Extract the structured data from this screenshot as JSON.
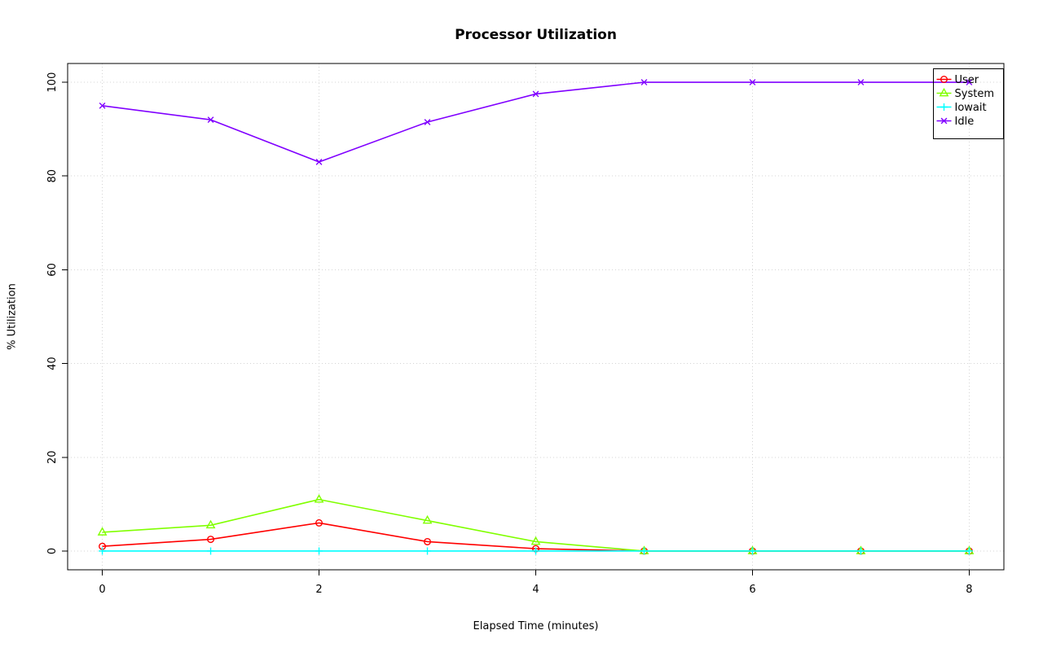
{
  "chart_data": {
    "type": "line",
    "title": "Processor Utilization",
    "xlabel": "Elapsed Time (minutes)",
    "ylabel": "% Utilization",
    "x": [
      0,
      1,
      2,
      3,
      4,
      5,
      6,
      7,
      8
    ],
    "xlim": [
      0,
      8
    ],
    "ylim": [
      0,
      100
    ],
    "xticks": [
      0,
      2,
      4,
      6,
      8
    ],
    "yticks": [
      0,
      20,
      40,
      60,
      80,
      100
    ],
    "grid": true,
    "grid_style": "dotted",
    "grid_color": "#d4d4d4",
    "legend_position": "top-right",
    "series": [
      {
        "name": "User",
        "marker": "circle",
        "color": "#FF0000",
        "values": [
          1,
          2.5,
          6,
          2,
          0.5,
          0,
          0,
          0,
          0
        ]
      },
      {
        "name": "System",
        "marker": "triangle",
        "color": "#80FF00",
        "values": [
          4,
          5.5,
          11,
          6.5,
          2,
          0,
          0,
          0,
          0
        ]
      },
      {
        "name": "Iowait",
        "marker": "plus",
        "color": "#00FFFF",
        "values": [
          0,
          0,
          0,
          0,
          0,
          0,
          0,
          0,
          0
        ]
      },
      {
        "name": "Idle",
        "marker": "x",
        "color": "#8000FF",
        "values": [
          95,
          92,
          83,
          91.5,
          97.5,
          100,
          100,
          100,
          100
        ]
      }
    ]
  }
}
